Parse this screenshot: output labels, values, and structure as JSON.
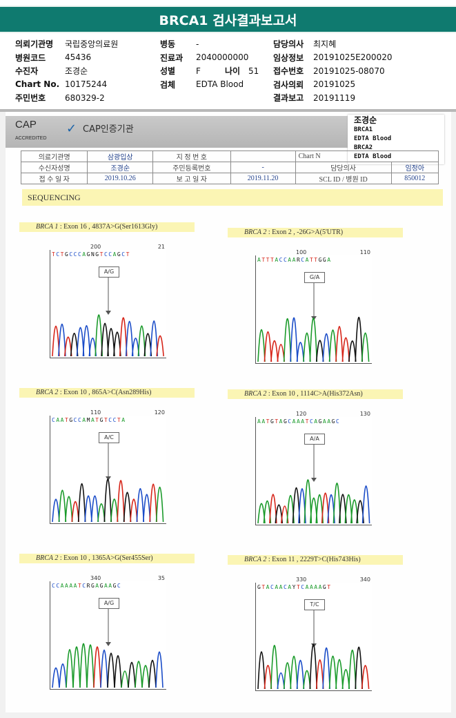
{
  "title": "BRCA1 검사결과보고서",
  "info": [
    [
      {
        "l": "의뢰기관명",
        "v": "국립중앙의료원"
      },
      {
        "l": "병동",
        "v": "-"
      },
      {
        "l": "담당의사",
        "v": "최지혜"
      }
    ],
    [
      {
        "l": "병원코드",
        "v": "45436"
      },
      {
        "l": "진료과",
        "v": "2040000000"
      },
      {
        "l": "임상정보",
        "v": "20191025E200020"
      }
    ],
    [
      {
        "l": "수진자",
        "v": "조경순"
      },
      {
        "l": "성별",
        "v": "F",
        "l2": "나이",
        "v2": "51"
      },
      {
        "l": "접수번호",
        "v": "20191025-08070"
      }
    ],
    [
      {
        "l": "Chart No.",
        "v": "10175244"
      },
      {
        "l": "검체",
        "v": "EDTA Blood"
      },
      {
        "l": "검사의뢰",
        "v": "20191025"
      }
    ],
    [
      {
        "l": "주민번호",
        "v": "680329-2"
      },
      {
        "l": "",
        "v": ""
      },
      {
        "l": "결과보고",
        "v": "20191119"
      }
    ]
  ],
  "cap": {
    "logo": "CAP",
    "accredited": "ACCREDITED",
    "text": "CAP인증기관"
  },
  "sticker": {
    "name": "조경순",
    "l1": "BRCA1",
    "l2": "EDTA Blood",
    "l3": "BRCA2",
    "l4": "EDTA Blood"
  },
  "mini_table": {
    "r1": [
      "의료기관명",
      "삼광입상",
      "지 정 번 호",
      "",
      "Chart N"
    ],
    "r2": [
      "수신자성명",
      "조경순",
      "주민등록번호",
      "-",
      "담당의사",
      "임정아"
    ],
    "r3": [
      "접 수 일 자",
      "2019.10.26",
      "보 고 일 자",
      "2019.11.20",
      "SCL ID / 병원 ID",
      "850012"
    ]
  },
  "section": "SEQUENCING",
  "panels": [
    {
      "gene": "BRCA 1",
      "desc": " : Exon 16 , 4837A>G(Ser1613Gly)",
      "bases": "TCTGCCCAGNGTCCAGCT",
      "pl": "200",
      "pr": "21",
      "call": "A/G"
    },
    {
      "gene": "BRCA 2",
      "desc": " : Exon 2 , -26G>A(5'UTR)",
      "bases": "ATTTACCAARCATTGGA",
      "pl": "100",
      "pr": "110",
      "call": "G/A"
    },
    {
      "gene": "BRCA 2",
      "desc": " : Exon 10 , 865A>C(Asn289His)",
      "bases": "CAATGCCAMATGTCCTA",
      "pl": "110",
      "pr": "120",
      "call": "A/C"
    },
    {
      "gene": "BRCA 2",
      "desc": " : Exon 10 , 1114C>A(His372Asn)",
      "bases": "AATGTAGCAAATCAGAAGC",
      "pl": "120",
      "pr": "130",
      "call": "A/A"
    },
    {
      "gene": "BRCA 2",
      "desc": " : Exon 10 , 1365A>G(Ser455Ser)",
      "bases": "CCAAAATCRGAGAAGC",
      "pl": "340",
      "pr": "35",
      "call": "A/G"
    },
    {
      "gene": "BRCA 2",
      "desc": " : Exon 11 , 2229T>C(His743His)",
      "bases": "GTACAACAYTCAAAAGT",
      "pl": "330",
      "pr": "340",
      "call": "T/C"
    }
  ]
}
